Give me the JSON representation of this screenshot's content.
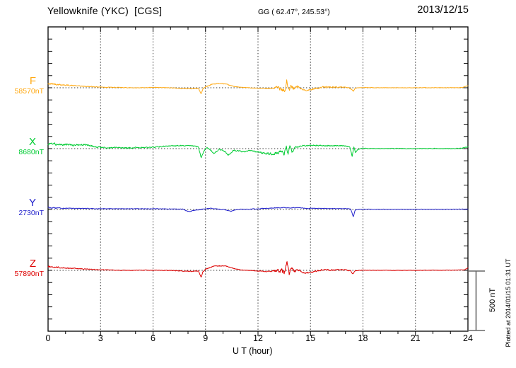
{
  "header": {
    "title": "Yellowknife (YKC)  [CGS]",
    "coords": "GG ( 62.47°, 245.53°)",
    "date": "2013/12/15"
  },
  "footer": {
    "xlabel": "U T (hour)"
  },
  "side": {
    "scale_label": "500 nT",
    "plotted_label": "Plotted at 2014/01/15 01:31 UT"
  },
  "colors": {
    "frame": "#000000",
    "grid": "#333333",
    "scalebar": "#666666"
  },
  "chart_data": {
    "type": "line",
    "title": "Yellowknife (YKC)  [CGS]",
    "xlabel": "U T (hour)",
    "x_range": [
      0,
      24
    ],
    "x_major_ticks": [
      0,
      3,
      6,
      9,
      12,
      15,
      18,
      21,
      24
    ],
    "x_minor_step_hours": 1,
    "y_minor_tick_nT": 100,
    "scale_bar_nT": 500,
    "grid": "dotted vertical lines every 3 h; dotted horizontal line at each trace baseline",
    "series": [
      {
        "name": "F",
        "value_label": "58570nT",
        "baseline_nT": 58570,
        "color": "#FFA913",
        "shape": [
          [
            0,
            30
          ],
          [
            0.3,
            32
          ],
          [
            1,
            22
          ],
          [
            2,
            12
          ],
          [
            3,
            6
          ],
          [
            4,
            2
          ],
          [
            5,
            0
          ],
          [
            6,
            2
          ],
          [
            7,
            0
          ],
          [
            7.6,
            -6
          ],
          [
            8.2,
            -8
          ],
          [
            8.6,
            -5
          ],
          [
            8.75,
            -50
          ],
          [
            8.85,
            -10
          ],
          [
            9.0,
            8
          ],
          [
            9.4,
            30
          ],
          [
            9.7,
            35
          ],
          [
            10.1,
            32
          ],
          [
            10.5,
            15
          ],
          [
            10.9,
            5
          ],
          [
            11.5,
            0
          ],
          [
            12.0,
            -4
          ],
          [
            12.6,
            -8
          ],
          [
            13.0,
            -2
          ],
          [
            13.3,
            5
          ],
          [
            13.55,
            -25
          ],
          [
            13.65,
            65
          ],
          [
            13.75,
            -30
          ],
          [
            13.9,
            10
          ],
          [
            14.1,
            -5
          ],
          [
            14.3,
            8
          ],
          [
            14.55,
            -18
          ],
          [
            14.9,
            -20
          ],
          [
            15.2,
            -8
          ],
          [
            15.6,
            3
          ],
          [
            16.0,
            6
          ],
          [
            16.5,
            4
          ],
          [
            17.0,
            6
          ],
          [
            17.3,
            -8
          ],
          [
            17.45,
            -30
          ],
          [
            17.55,
            -5
          ],
          [
            17.8,
            2
          ],
          [
            19,
            0
          ],
          [
            21,
            0
          ],
          [
            23,
            1
          ],
          [
            23.7,
            2
          ],
          [
            23.9,
            14
          ],
          [
            24,
            18
          ]
        ],
        "noise": [
          [
            0,
            10
          ],
          [
            0.6,
            6
          ],
          [
            2,
            3
          ],
          [
            5,
            2
          ],
          [
            8,
            3
          ],
          [
            9,
            4
          ],
          [
            11,
            2
          ],
          [
            12.8,
            3
          ],
          [
            13.2,
            22
          ],
          [
            14.0,
            16
          ],
          [
            14.6,
            5
          ],
          [
            15,
            7
          ],
          [
            17.2,
            5
          ],
          [
            17.6,
            2
          ],
          [
            19,
            1.5
          ],
          [
            24,
            2
          ]
        ]
      },
      {
        "name": "X",
        "value_label": "8680nT",
        "baseline_nT": 8680,
        "color": "#00CC33",
        "shape": [
          [
            0,
            30
          ],
          [
            0.2,
            40
          ],
          [
            0.7,
            30
          ],
          [
            1.2,
            35
          ],
          [
            1.6,
            28
          ],
          [
            2.1,
            32
          ],
          [
            2.6,
            18
          ],
          [
            3.0,
            10
          ],
          [
            3.5,
            8
          ],
          [
            4.0,
            12
          ],
          [
            4.5,
            6
          ],
          [
            5.0,
            8
          ],
          [
            5.5,
            6
          ],
          [
            6.0,
            12
          ],
          [
            6.5,
            18
          ],
          [
            7.0,
            22
          ],
          [
            7.5,
            25
          ],
          [
            8.0,
            24
          ],
          [
            8.4,
            22
          ],
          [
            8.6,
            10
          ],
          [
            8.75,
            -75
          ],
          [
            8.9,
            -20
          ],
          [
            9.05,
            5
          ],
          [
            9.2,
            0
          ],
          [
            9.5,
            -40
          ],
          [
            9.75,
            -8
          ],
          [
            10.0,
            -12
          ],
          [
            10.3,
            -52
          ],
          [
            10.6,
            -15
          ],
          [
            10.9,
            -18
          ],
          [
            11.2,
            -25
          ],
          [
            11.5,
            -15
          ],
          [
            11.8,
            -20
          ],
          [
            12.1,
            -30
          ],
          [
            12.4,
            -42
          ],
          [
            12.8,
            -40
          ],
          [
            13.1,
            -35
          ],
          [
            13.35,
            -20
          ],
          [
            13.5,
            -50
          ],
          [
            13.62,
            30
          ],
          [
            13.72,
            -55
          ],
          [
            13.82,
            25
          ],
          [
            13.95,
            -30
          ],
          [
            14.1,
            5
          ],
          [
            14.3,
            18
          ],
          [
            14.6,
            22
          ],
          [
            15.0,
            24
          ],
          [
            15.5,
            26
          ],
          [
            16.0,
            24
          ],
          [
            16.5,
            25
          ],
          [
            17.0,
            22
          ],
          [
            17.25,
            15
          ],
          [
            17.38,
            -65
          ],
          [
            17.48,
            10
          ],
          [
            17.58,
            -35
          ],
          [
            17.7,
            -5
          ],
          [
            18.0,
            2
          ],
          [
            19,
            0
          ],
          [
            20,
            1
          ],
          [
            21,
            0
          ],
          [
            22,
            1
          ],
          [
            23,
            0
          ],
          [
            23.6,
            2
          ],
          [
            23.85,
            10
          ],
          [
            24,
            14
          ]
        ],
        "noise": [
          [
            0,
            11
          ],
          [
            1,
            9
          ],
          [
            2.5,
            7
          ],
          [
            3,
            6
          ],
          [
            5,
            5
          ],
          [
            6,
            5
          ],
          [
            8,
            4
          ],
          [
            9,
            5
          ],
          [
            10,
            5
          ],
          [
            12,
            6
          ],
          [
            13.2,
            14
          ],
          [
            14.0,
            10
          ],
          [
            14.4,
            6
          ],
          [
            15,
            6
          ],
          [
            17.2,
            5
          ],
          [
            17.7,
            3
          ],
          [
            18.5,
            2
          ],
          [
            24,
            3
          ]
        ]
      },
      {
        "name": "Y",
        "value_label": "2730nT",
        "baseline_nT": 2730,
        "color": "#2222CC",
        "shape": [
          [
            0,
            14
          ],
          [
            0.5,
            10
          ],
          [
            1,
            9
          ],
          [
            2,
            8
          ],
          [
            3,
            7
          ],
          [
            4,
            6
          ],
          [
            5,
            6
          ],
          [
            6,
            5
          ],
          [
            7,
            5
          ],
          [
            7.7,
            2
          ],
          [
            8.05,
            -18
          ],
          [
            8.3,
            -8
          ],
          [
            8.6,
            -2
          ],
          [
            9.0,
            6
          ],
          [
            9.3,
            10
          ],
          [
            9.7,
            2
          ],
          [
            10.1,
            -2
          ],
          [
            10.45,
            -16
          ],
          [
            10.7,
            -4
          ],
          [
            11,
            2
          ],
          [
            11.5,
            3
          ],
          [
            12,
            4
          ],
          [
            12.5,
            10
          ],
          [
            13,
            13
          ],
          [
            13.5,
            15
          ],
          [
            14,
            14
          ],
          [
            14.5,
            12
          ],
          [
            14.8,
            8
          ],
          [
            15.2,
            10
          ],
          [
            15.8,
            8
          ],
          [
            16.4,
            8
          ],
          [
            17.0,
            6
          ],
          [
            17.3,
            4
          ],
          [
            17.45,
            -62
          ],
          [
            17.55,
            -5
          ],
          [
            17.8,
            2
          ],
          [
            18.2,
            2
          ],
          [
            19,
            2
          ],
          [
            20,
            2
          ],
          [
            21,
            2
          ],
          [
            22,
            2
          ],
          [
            23,
            2
          ],
          [
            24,
            3
          ]
        ],
        "noise": [
          [
            0,
            7
          ],
          [
            0.8,
            4
          ],
          [
            2,
            2.5
          ],
          [
            7,
            2
          ],
          [
            8,
            3
          ],
          [
            11,
            2
          ],
          [
            12,
            3.5
          ],
          [
            14.5,
            3
          ],
          [
            15,
            2.5
          ],
          [
            17.2,
            2
          ],
          [
            17.7,
            1.5
          ],
          [
            18,
            1.5
          ],
          [
            24,
            1.5
          ]
        ]
      },
      {
        "name": "Z",
        "value_label": "57890nT",
        "baseline_nT": 57890,
        "color": "#DD0000",
        "shape": [
          [
            0,
            28
          ],
          [
            0.3,
            30
          ],
          [
            1,
            20
          ],
          [
            2,
            12
          ],
          [
            3,
            5
          ],
          [
            4,
            1
          ],
          [
            5,
            0
          ],
          [
            6,
            1
          ],
          [
            7,
            -1
          ],
          [
            7.6,
            -6
          ],
          [
            8.2,
            -9
          ],
          [
            8.6,
            -6
          ],
          [
            8.75,
            -55
          ],
          [
            8.85,
            -12
          ],
          [
            9.0,
            8
          ],
          [
            9.4,
            32
          ],
          [
            9.8,
            38
          ],
          [
            10.2,
            34
          ],
          [
            10.6,
            16
          ],
          [
            11.0,
            4
          ],
          [
            11.5,
            -1
          ],
          [
            12.0,
            -5
          ],
          [
            12.6,
            -10
          ],
          [
            13.0,
            -4
          ],
          [
            13.3,
            4
          ],
          [
            13.5,
            -22
          ],
          [
            13.65,
            70
          ],
          [
            13.78,
            -32
          ],
          [
            13.9,
            8
          ],
          [
            14.1,
            -6
          ],
          [
            14.35,
            6
          ],
          [
            14.6,
            -20
          ],
          [
            14.9,
            -22
          ],
          [
            15.2,
            -10
          ],
          [
            15.6,
            2
          ],
          [
            16.0,
            5
          ],
          [
            16.5,
            3
          ],
          [
            17.0,
            5
          ],
          [
            17.3,
            -6
          ],
          [
            17.42,
            -28
          ],
          [
            17.55,
            -4
          ],
          [
            17.8,
            1
          ],
          [
            19,
            0
          ],
          [
            21,
            0
          ],
          [
            23,
            1
          ],
          [
            23.8,
            3
          ],
          [
            23.95,
            16
          ],
          [
            24,
            20
          ]
        ],
        "noise": [
          [
            0,
            9
          ],
          [
            0.6,
            5
          ],
          [
            2,
            3
          ],
          [
            5,
            2
          ],
          [
            8,
            3
          ],
          [
            9,
            4
          ],
          [
            11,
            2
          ],
          [
            12.8,
            3
          ],
          [
            13.2,
            20
          ],
          [
            14.0,
            15
          ],
          [
            14.6,
            5
          ],
          [
            15,
            7
          ],
          [
            17.2,
            5
          ],
          [
            17.6,
            2
          ],
          [
            19,
            1.5
          ],
          [
            24,
            2
          ]
        ]
      }
    ]
  }
}
